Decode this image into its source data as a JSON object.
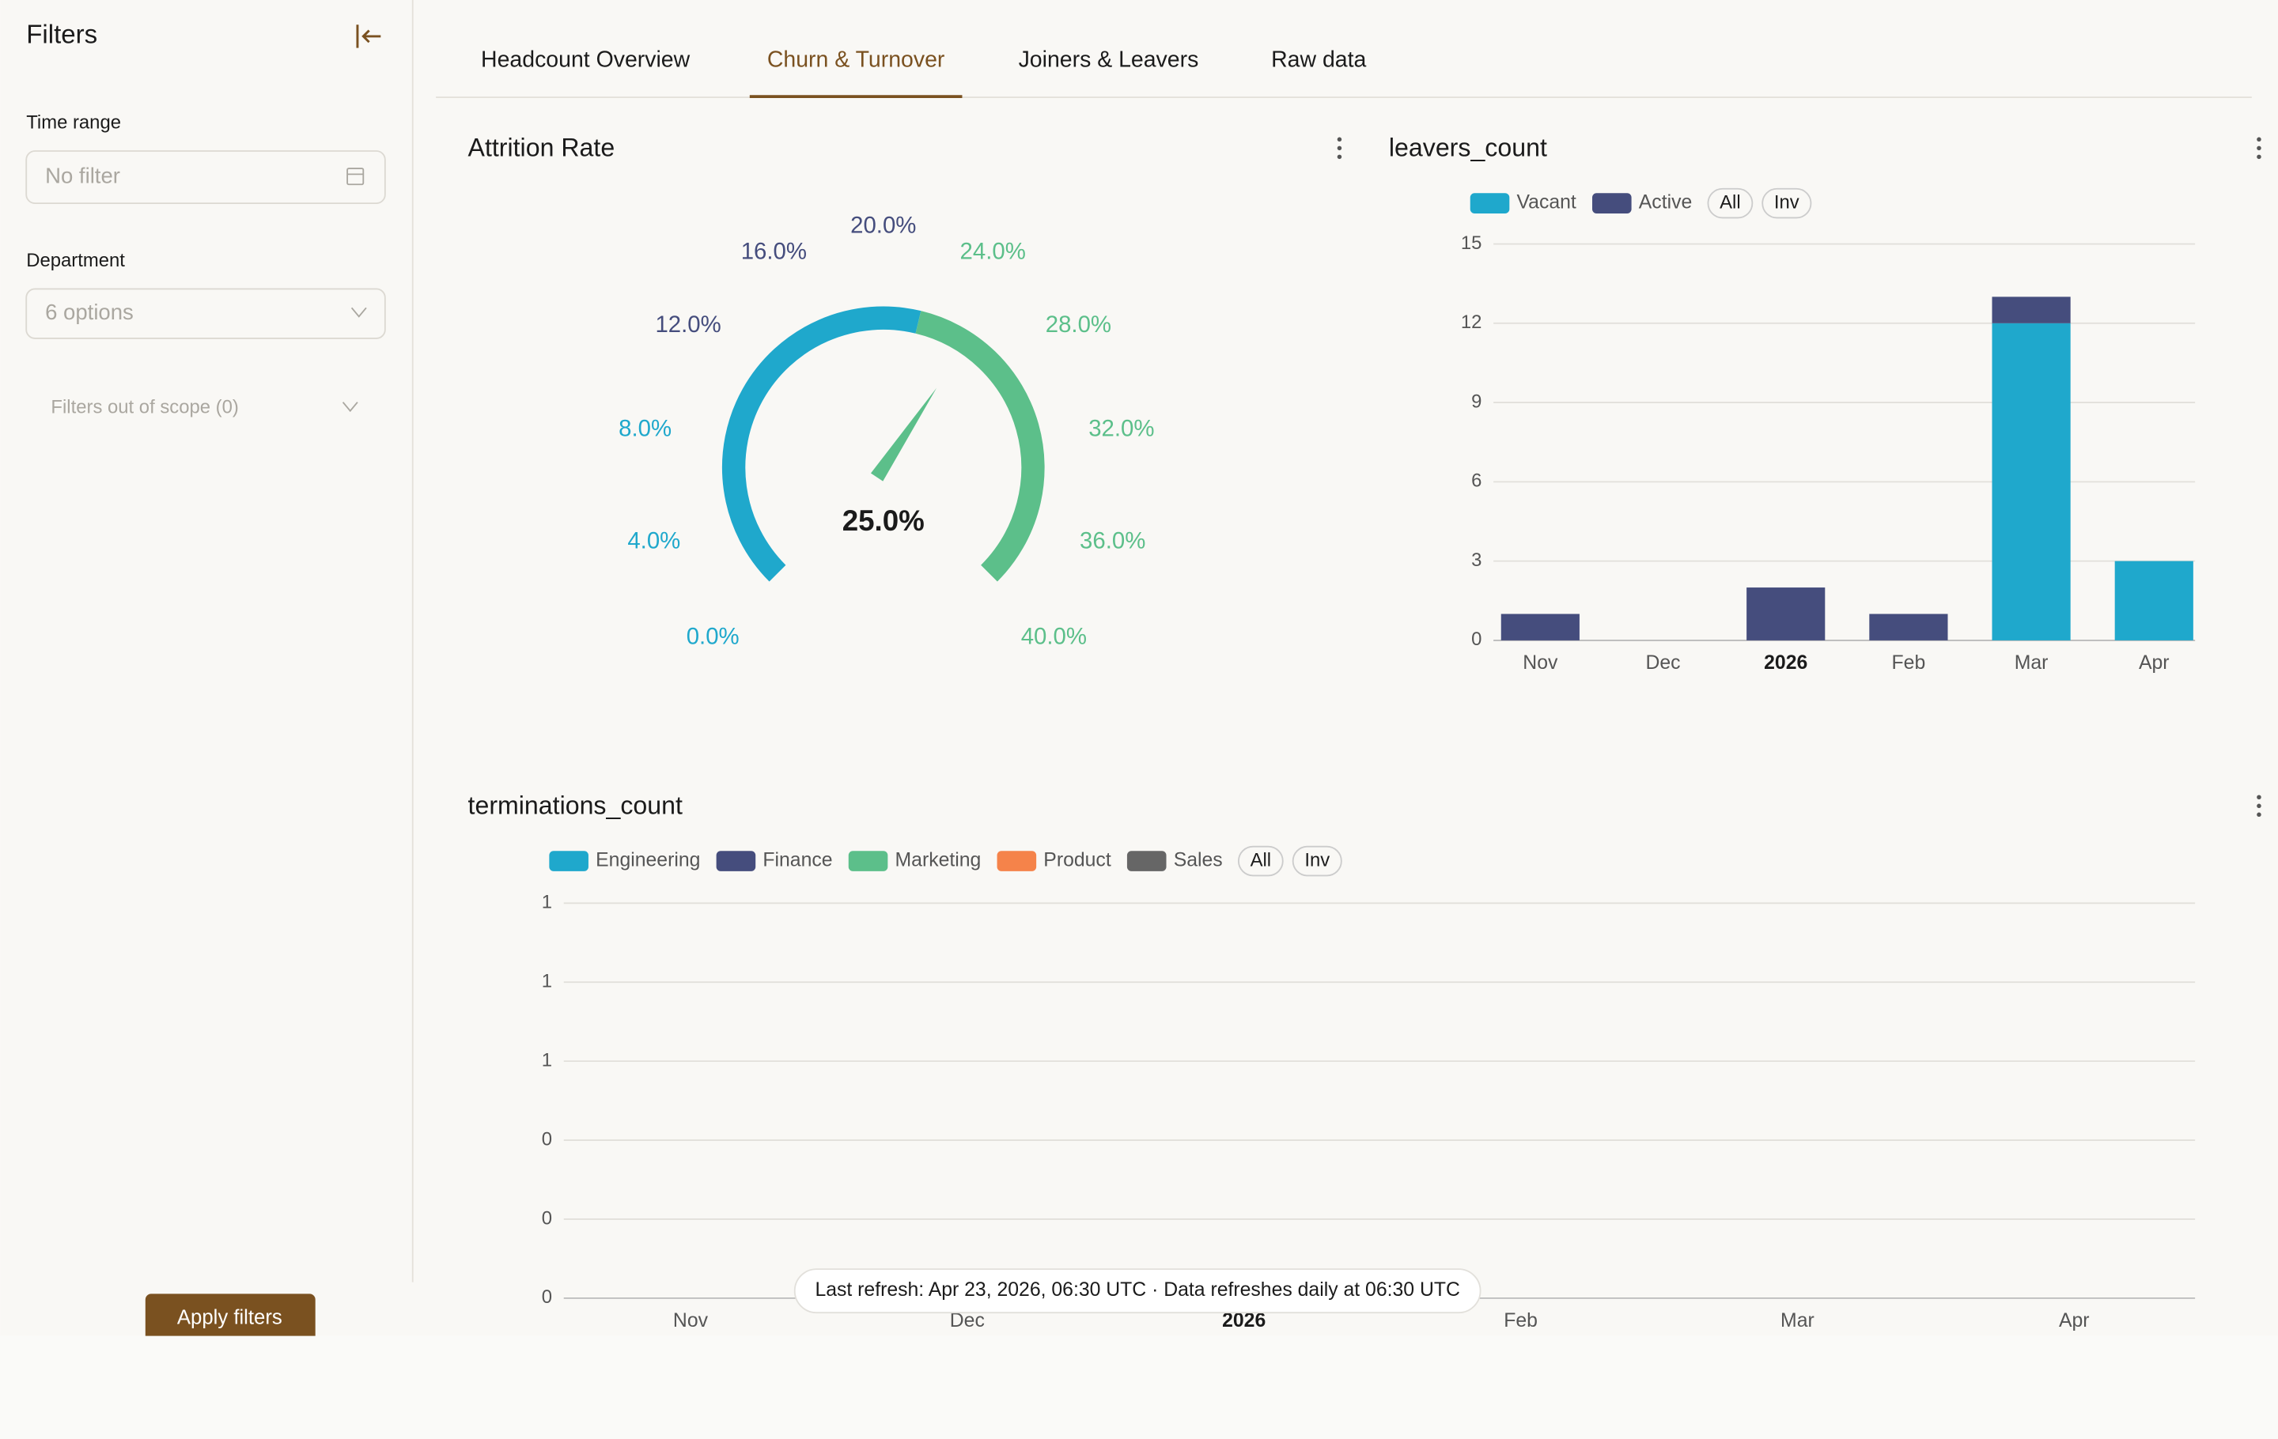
{
  "sidebar": {
    "title": "Filters",
    "time_range_label": "Time range",
    "time_range_placeholder": "No filter",
    "department_label": "Department",
    "department_placeholder": "6 options",
    "out_of_scope": "Filters out of scope (0)",
    "apply_button": "Apply filters"
  },
  "tabs": {
    "items": [
      "Headcount Overview",
      "Churn & Turnover",
      "Joiners & Leavers",
      "Raw data"
    ],
    "active": 1
  },
  "footer_note": "Last refresh: Apr 23, 2026, 06:30 UTC · Data refreshes daily at 06:30 UTC",
  "chart_data": [
    {
      "type": "gauge",
      "title": "Attrition Rate",
      "value": 25,
      "value_label": "25.0%",
      "lim": [
        0,
        40
      ],
      "ticks": [
        {
          "value": 0,
          "label": "0.0%"
        },
        {
          "value": 4,
          "label": "4.0%"
        },
        {
          "value": 8,
          "label": "8.0%"
        },
        {
          "value": 12,
          "label": "12.0%"
        },
        {
          "value": 16,
          "label": "16.0%"
        },
        {
          "value": 20,
          "label": "20.0%"
        },
        {
          "value": 24,
          "label": "24.0%"
        },
        {
          "value": 28,
          "label": "28.0%"
        },
        {
          "value": 32,
          "label": "32.0%"
        },
        {
          "value": 36,
          "label": "36.0%"
        },
        {
          "value": 40,
          "label": "40.0%"
        }
      ],
      "tick_colors": [
        "#1fa8cc",
        "#1fa8cc",
        "#1fa8cc",
        "#454d7d",
        "#454d7d",
        "#454d7d",
        "#5cbf8a",
        "#5cbf8a",
        "#5cbf8a",
        "#5cbf8a",
        "#5cbf8a"
      ],
      "bands": [
        {
          "to": 22,
          "color": "#1fa8cc"
        },
        {
          "to": 40,
          "color": "#5cbf8a"
        }
      ],
      "needle_color": "#5cbf8a"
    },
    {
      "type": "bar",
      "stacked": true,
      "title": "leavers_count",
      "categories": [
        "Nov",
        "Dec",
        "2026",
        "Feb",
        "Mar",
        "Apr"
      ],
      "category_bold": [
        false,
        false,
        true,
        false,
        false,
        false
      ],
      "series": [
        {
          "name": "Vacant",
          "color": "#1fa8cc",
          "values": [
            0,
            0,
            0,
            0,
            12,
            3
          ]
        },
        {
          "name": "Active",
          "color": "#454d7d",
          "values": [
            1,
            0,
            2,
            1,
            1,
            0
          ]
        }
      ],
      "legend_buttons": [
        "All",
        "Inv"
      ],
      "ylim": [
        0,
        15
      ],
      "yticks": [
        0,
        3,
        6,
        9,
        12,
        15
      ],
      "grid": true
    },
    {
      "type": "bar",
      "stacked": true,
      "title": "terminations_count",
      "categories": [
        "Nov",
        "Dec",
        "2026",
        "Feb",
        "Mar",
        "Apr"
      ],
      "category_bold": [
        false,
        false,
        true,
        false,
        false,
        false
      ],
      "series": [
        {
          "name": "Engineering",
          "color": "#1fa8cc",
          "values": [
            null,
            null,
            null,
            null,
            null,
            null
          ]
        },
        {
          "name": "Finance",
          "color": "#454d7d",
          "values": [
            null,
            null,
            null,
            null,
            null,
            null
          ]
        },
        {
          "name": "Marketing",
          "color": "#5cbf8a",
          "values": [
            null,
            null,
            null,
            null,
            null,
            null
          ]
        },
        {
          "name": "Product",
          "color": "#f5834a",
          "values": [
            null,
            null,
            null,
            null,
            null,
            null
          ]
        },
        {
          "name": "Sales",
          "color": "#666666",
          "values": [
            null,
            null,
            null,
            null,
            null,
            null
          ]
        }
      ],
      "legend_buttons": [
        "All",
        "Inv"
      ],
      "ylim": [
        0,
        1
      ],
      "yticks": [
        {
          "value": 0,
          "label": "0"
        },
        {
          "value": 0.2,
          "label": "0"
        },
        {
          "value": 0.4,
          "label": "0"
        },
        {
          "value": 0.6,
          "label": "1"
        },
        {
          "value": 0.8,
          "label": "1"
        },
        {
          "value": 1,
          "label": "1"
        }
      ],
      "grid": true
    }
  ]
}
